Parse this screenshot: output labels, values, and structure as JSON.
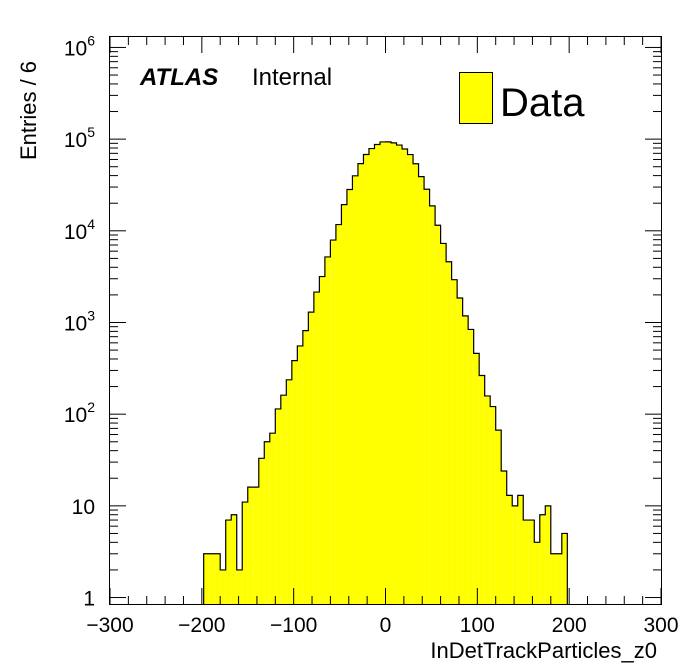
{
  "chart_data": {
    "type": "histogram",
    "title": "",
    "xlabel": "InDetTrackParticles_z0",
    "ylabel": "Entries / 6",
    "xlim": [
      -300,
      300
    ],
    "ylim": [
      0.85,
      1300000
    ],
    "y_scale": "log",
    "bin_width": 6,
    "x_ticks": [
      "−300",
      "−200",
      "−100",
      "0",
      "100",
      "200",
      "300"
    ],
    "y_ticks": [
      {
        "base": "1",
        "exp": ""
      },
      {
        "base": "10",
        "exp": ""
      },
      {
        "base": "10",
        "exp": "2"
      },
      {
        "base": "10",
        "exp": "3"
      },
      {
        "base": "10",
        "exp": "4"
      },
      {
        "base": "10",
        "exp": "5"
      },
      {
        "base": "10",
        "exp": "6"
      }
    ],
    "annotation": {
      "bold": "ATLAS",
      "normal": "Internal"
    },
    "legend": {
      "position": "top-right",
      "entries": [
        "Data"
      ]
    },
    "series": [
      {
        "name": "Data",
        "fill": "#ffff00",
        "line": "#000000",
        "bin_edges": [
          -198,
          -192,
          -186,
          -180,
          -174,
          -168,
          -162,
          -156,
          -150,
          -144,
          -138,
          -132,
          -126,
          -120,
          -114,
          -108,
          -102,
          -96,
          -90,
          -84,
          -78,
          -72,
          -66,
          -60,
          -54,
          -48,
          -42,
          -36,
          -30,
          -24,
          -18,
          -12,
          -6,
          0,
          6,
          12,
          18,
          24,
          30,
          36,
          42,
          48,
          54,
          60,
          66,
          72,
          78,
          84,
          90,
          96,
          102,
          108,
          114,
          120,
          126,
          132,
          138,
          144,
          150,
          156,
          162,
          168,
          174,
          180,
          186,
          192,
          198
        ],
        "values": [
          3,
          3,
          3,
          2,
          7,
          8,
          2,
          11,
          16,
          16,
          33,
          50,
          62,
          114,
          161,
          237,
          384,
          555,
          815,
          1297,
          2146,
          3170,
          5188,
          7921,
          11700,
          19300,
          28200,
          39800,
          54000,
          68000,
          78900,
          87300,
          93200,
          93400,
          91000,
          86200,
          78000,
          67900,
          53900,
          39000,
          28400,
          18700,
          11500,
          7280,
          4600,
          2930,
          1850,
          1180,
          840,
          460,
          264,
          158,
          121,
          67,
          24,
          13,
          10,
          13,
          7,
          7,
          4,
          8,
          10,
          3,
          3,
          5
        ]
      }
    ]
  }
}
